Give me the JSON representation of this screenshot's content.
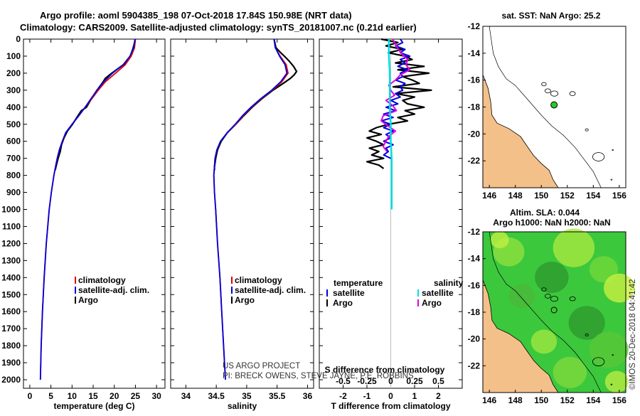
{
  "header": {
    "line1": "Argo profile: aoml 5904385_198 07-Oct-2018 17.84S 150.98E (NRT data)",
    "line2": "Climatology: CARS2009. Satellite-adjusted climatology: synTS_20181007.nc (0.21d earlier)"
  },
  "credits": {
    "line1": "US ARGO PROJECT",
    "line2": "PI: BRECK OWENS, STEVE JAYNE, P.E. ROBBINS"
  },
  "stamp": "©IMOS 20-Dec-2018 04:41:42",
  "colors": {
    "climatology": "#e00000",
    "satellite": "#0000e0",
    "argo": "#000000",
    "sal_sat": "#00e0e0",
    "sal_argo": "#e000e0",
    "land": "#f4c08a",
    "sla_base": "#3cc83c"
  },
  "chart_data": [
    {
      "type": "line",
      "panel": "temperature",
      "xlabel": "temperature (deg C)",
      "ylabel": "",
      "xlim": [
        -1.5,
        32
      ],
      "ylim": [
        2050,
        0
      ],
      "xticks": [
        "0",
        "5",
        "10",
        "15",
        "20",
        "25",
        "30"
      ],
      "yticks": [
        "0",
        "100",
        "200",
        "300",
        "400",
        "500",
        "600",
        "700",
        "800",
        "900",
        "1000",
        "1100",
        "1200",
        "1300",
        "1400",
        "1500",
        "1600",
        "1700",
        "1800",
        "1900",
        "2000"
      ],
      "legend": [
        "climatology",
        "satellite-adj. clim.",
        "Argo"
      ],
      "series": [
        {
          "name": "climatology",
          "pres": [
            0,
            50,
            100,
            150,
            200,
            250,
            300,
            350,
            400,
            450,
            500,
            550,
            600,
            650,
            700,
            750,
            800,
            900,
            1000,
            1200,
            1400,
            1600,
            1800,
            2000
          ],
          "values": [
            25.0,
            24.8,
            24.0,
            22.6,
            20.3,
            17.9,
            16.2,
            14.7,
            13.1,
            11.6,
            10.0,
            8.5,
            7.7,
            7.0,
            6.5,
            6.1,
            5.7,
            5.1,
            4.6,
            3.9,
            3.4,
            3.0,
            2.7,
            2.5
          ]
        },
        {
          "name": "satellite",
          "pres": [
            0,
            50,
            100,
            150,
            200,
            250,
            300,
            350,
            400,
            450,
            500,
            550,
            600,
            650,
            700,
            750,
            800,
            900,
            1000,
            1200,
            1400,
            1600,
            1800,
            2000
          ],
          "values": [
            24.9,
            24.6,
            23.7,
            22.1,
            19.6,
            17.5,
            15.9,
            14.5,
            13.1,
            11.6,
            10.0,
            8.5,
            7.7,
            7.0,
            6.5,
            6.1,
            5.7,
            5.1,
            4.6,
            3.9,
            3.4,
            3.0,
            2.7,
            2.5
          ]
        },
        {
          "name": "argo",
          "pres": [
            0,
            50,
            100,
            150,
            200,
            230,
            260,
            300,
            350,
            400,
            420,
            450,
            500,
            540,
            580,
            620,
            660,
            700,
            750,
            770
          ],
          "values": [
            25.0,
            24.5,
            23.8,
            22.2,
            19.4,
            17.9,
            17.1,
            15.9,
            14.6,
            13.4,
            12.2,
            11.4,
            10.1,
            8.9,
            8.1,
            7.5,
            7.2,
            6.7,
            6.2,
            6.0
          ]
        }
      ]
    },
    {
      "type": "line",
      "panel": "salinity",
      "xlabel": "salinity",
      "ylabel": "",
      "xlim": [
        33.75,
        36.1
      ],
      "ylim": [
        2050,
        0
      ],
      "xticks": [
        "34",
        "34.5",
        "35",
        "35.5",
        "36"
      ],
      "legend": [
        "climatology",
        "satellite-adj. clim.",
        "Argo"
      ],
      "series": [
        {
          "name": "climatology",
          "pres": [
            0,
            50,
            100,
            150,
            200,
            250,
            300,
            350,
            400,
            450,
            500,
            550,
            600,
            650,
            700,
            800,
            900,
            1000,
            1200,
            1400,
            1600,
            1800,
            2000
          ],
          "values": [
            35.45,
            35.47,
            35.55,
            35.65,
            35.68,
            35.58,
            35.42,
            35.24,
            35.08,
            34.94,
            34.82,
            34.68,
            34.57,
            34.51,
            34.48,
            34.46,
            34.47,
            34.49,
            34.52,
            34.56,
            34.59,
            34.62,
            34.65
          ]
        },
        {
          "name": "satellite",
          "pres": [
            0,
            50,
            100,
            150,
            200,
            250,
            300,
            350,
            400,
            450,
            500,
            550,
            600,
            650,
            700,
            800,
            900,
            1000,
            1200,
            1400,
            1600,
            1800,
            2000
          ],
          "values": [
            35.45,
            35.47,
            35.54,
            35.63,
            35.66,
            35.56,
            35.41,
            35.23,
            35.07,
            34.93,
            34.81,
            34.68,
            34.57,
            34.51,
            34.48,
            34.46,
            34.47,
            34.49,
            34.52,
            34.56,
            34.59,
            34.62,
            34.65
          ]
        },
        {
          "name": "argo",
          "pres": [
            0,
            50,
            80,
            100,
            130,
            160,
            190,
            210,
            230,
            260,
            300,
            350,
            400,
            450,
            500,
            550,
            600,
            650,
            700,
            750,
            770
          ],
          "values": [
            35.45,
            35.48,
            35.56,
            35.62,
            35.7,
            35.77,
            35.82,
            35.78,
            35.72,
            35.6,
            35.43,
            35.25,
            35.09,
            34.95,
            34.82,
            34.68,
            34.58,
            34.52,
            34.49,
            34.47,
            34.47
          ]
        }
      ]
    },
    {
      "type": "line",
      "panel": "difference",
      "xlabel": "T difference from climatology",
      "title_s": "S difference from climatology",
      "xlim": [
        -3,
        3
      ],
      "ylim": [
        2050,
        0
      ],
      "xticks": [
        "-2",
        "-1",
        "0",
        "1",
        "2"
      ],
      "xticks_s": [
        "-0.5",
        "-0.25",
        "0",
        "0.25",
        "0.5"
      ],
      "legend_t_title": "temperature",
      "legend_s_title": "salinity",
      "legend_t": [
        "satellite",
        "Argo"
      ],
      "legend_s": [
        "satellite",
        "Argo"
      ],
      "series": [
        {
          "name": "T satellite",
          "pres": [
            0,
            20,
            40,
            60,
            80,
            100,
            120,
            140,
            160,
            180,
            200,
            220,
            240,
            260,
            280,
            300,
            320,
            340,
            360,
            380,
            400,
            420,
            440,
            460,
            480,
            500,
            520,
            540,
            560,
            580,
            600,
            620,
            640,
            660,
            680,
            700
          ],
          "values": [
            0.4,
            0.5,
            0.2,
            0.6,
            0.4,
            0.8,
            0.4,
            0.6,
            0.3,
            0.7,
            0.4,
            0.5,
            0.2,
            0.6,
            0.4,
            0.5,
            0.2,
            0.4,
            0.0,
            0.3,
            -0.2,
            0.2,
            -0.3,
            0.1,
            -0.4,
            0.0,
            -0.3,
            0.1,
            -0.2,
            0.0,
            -0.3,
            0.1,
            -0.2,
            -0.1,
            -0.3,
            0.0
          ]
        },
        {
          "name": "T argo",
          "pres": [
            0,
            20,
            40,
            60,
            80,
            100,
            120,
            140,
            160,
            180,
            200,
            220,
            240,
            260,
            280,
            300,
            320,
            340,
            360,
            380,
            400,
            420,
            440,
            460,
            480,
            500,
            520,
            540,
            560,
            580,
            600,
            620,
            640,
            660,
            680,
            700,
            720,
            740,
            760
          ],
          "values": [
            -0.4,
            0.3,
            -0.2,
            0.5,
            -0.1,
            0.6,
            0.9,
            0.2,
            1.4,
            0.3,
            1.6,
            0.5,
            0.9,
            1.2,
            0.1,
            1.7,
            0.2,
            1.0,
            0.5,
            0.7,
            1.4,
            0.6,
            1.0,
            0.3,
            0.7,
            -0.1,
            -0.6,
            -0.9,
            -0.4,
            -1.0,
            -0.6,
            -0.3,
            -0.9,
            -0.5,
            -0.8,
            -0.3,
            -1.0,
            -0.5,
            -0.3
          ]
        },
        {
          "name": "S satellite",
          "pres": [
            0,
            100,
            200,
            300,
            400,
            500,
            600,
            700,
            800,
            900,
            1000
          ],
          "values": [
            -0.02,
            -0.02,
            -0.01,
            -0.01,
            -0.01,
            0.0,
            0.0,
            0.01,
            0.01,
            0.01,
            0.01
          ]
        },
        {
          "name": "S argo",
          "pres": [
            0,
            30,
            60,
            90,
            120,
            150,
            180,
            210,
            240,
            270,
            300,
            330,
            360,
            390,
            420,
            450,
            480,
            510,
            540,
            570,
            600,
            630,
            660
          ],
          "values": [
            0.02,
            0.05,
            0.08,
            0.12,
            0.18,
            0.16,
            0.2,
            0.1,
            0.05,
            -0.02,
            0.0,
            0.04,
            -0.05,
            0.02,
            0.06,
            -0.08,
            -0.1,
            -0.03,
            0.05,
            -0.02,
            -0.05,
            -0.08,
            -0.04
          ]
        }
      ]
    },
    {
      "type": "map",
      "panel": "sst-map",
      "title": "sat. SST: NaN Argo: 25.2",
      "xticks": [
        "146",
        "148",
        "150",
        "152",
        "154",
        "156"
      ],
      "yticks": [
        "-12",
        "-14",
        "-16",
        "-18",
        "-20",
        "-22"
      ],
      "lon_range": [
        145.5,
        156.5
      ],
      "lat_range": [
        -24,
        -12
      ],
      "argo_position": {
        "lon": 150.98,
        "lat": -17.84
      }
    },
    {
      "type": "map",
      "panel": "sla-map",
      "title_line1": "Altim. SLA: 0.044",
      "title_line2": "Argo h1000: NaN h2000: NaN",
      "xticks": [
        "146",
        "148",
        "150",
        "152",
        "154",
        "156"
      ],
      "yticks": [
        "-12",
        "-14",
        "-16",
        "-18",
        "-20",
        "-22"
      ],
      "lon_range": [
        145.5,
        156.5
      ],
      "lat_range": [
        -24,
        -12
      ],
      "argo_position": {
        "lon": 150.98,
        "lat": -17.84
      }
    }
  ]
}
